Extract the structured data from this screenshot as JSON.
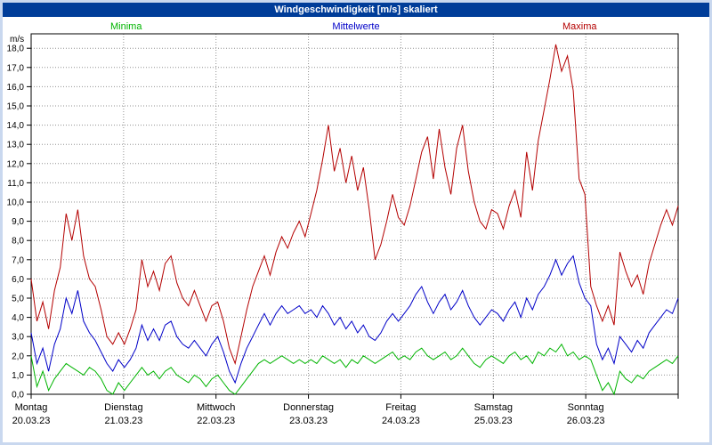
{
  "window": {
    "title": "Windgeschwindigkeit [m/s] skaliert"
  },
  "legend": {
    "minima": "Minima",
    "mittelwerte": "Mittelwerte",
    "maxima": "Maxima"
  },
  "colors": {
    "minima": "#00b400",
    "mittelwerte": "#0000c8",
    "maxima": "#b40000",
    "titlebar_bg": "#003d99",
    "frame_bg": "#c9d8ef",
    "grid": "#909090",
    "axis": "#000000"
  },
  "chart_data": {
    "type": "line",
    "title": "Windgeschwindigkeit [m/s] skaliert",
    "xlabel": "",
    "ylabel": "m/s",
    "ylim": [
      0,
      18.75
    ],
    "ytick_step": 1.0,
    "yticks": [
      "0,0",
      "1,0",
      "2,0",
      "3,0",
      "4,0",
      "5,0",
      "6,0",
      "7,0",
      "8,0",
      "9,0",
      "10,0",
      "11,0",
      "12,0",
      "13,0",
      "14,0",
      "15,0",
      "16,0",
      "17,0",
      "18,0"
    ],
    "grid": true,
    "legend_position": "top",
    "points_per_day": 16,
    "x_days": [
      {
        "weekday": "Montag",
        "date": "20.03.23"
      },
      {
        "weekday": "Dienstag",
        "date": "21.03.23"
      },
      {
        "weekday": "Mittwoch",
        "date": "22.03.23"
      },
      {
        "weekday": "Donnerstag",
        "date": "23.03.23"
      },
      {
        "weekday": "Freitag",
        "date": "24.03.23"
      },
      {
        "weekday": "Samstag",
        "date": "25.03.23"
      },
      {
        "weekday": "Sonntag",
        "date": "26.03.23"
      }
    ],
    "series": [
      {
        "name": "Minima",
        "color": "#00b400",
        "values": [
          2.0,
          0.4,
          1.2,
          0.2,
          0.8,
          1.2,
          1.6,
          1.4,
          1.2,
          1.0,
          1.4,
          1.2,
          0.8,
          0.2,
          0.0,
          0.6,
          0.2,
          0.6,
          1.0,
          1.4,
          1.0,
          1.2,
          0.8,
          1.2,
          1.4,
          1.0,
          0.8,
          0.6,
          1.0,
          0.8,
          0.4,
          0.8,
          1.0,
          0.6,
          0.2,
          0.0,
          0.4,
          0.8,
          1.2,
          1.6,
          1.8,
          1.6,
          1.8,
          2.0,
          1.8,
          1.6,
          1.8,
          1.6,
          1.8,
          1.6,
          2.0,
          1.8,
          1.6,
          1.8,
          1.4,
          1.8,
          1.6,
          2.0,
          1.8,
          1.6,
          1.8,
          2.0,
          2.2,
          1.8,
          2.0,
          1.8,
          2.2,
          2.4,
          2.0,
          1.8,
          2.0,
          2.2,
          1.8,
          2.0,
          2.4,
          2.0,
          1.6,
          1.4,
          1.8,
          2.0,
          1.8,
          1.6,
          2.0,
          2.2,
          1.8,
          2.0,
          1.6,
          2.2,
          2.0,
          2.4,
          2.2,
          2.6,
          2.0,
          2.2,
          1.8,
          2.0,
          1.8,
          1.0,
          0.2,
          0.6,
          0.0,
          1.2,
          0.8,
          0.6,
          1.0,
          0.8,
          1.2,
          1.4,
          1.6,
          1.8,
          1.6,
          2.0
        ]
      },
      {
        "name": "Mittelwerte",
        "color": "#0000c8",
        "values": [
          3.2,
          1.6,
          2.4,
          1.2,
          2.6,
          3.4,
          5.0,
          4.2,
          5.4,
          3.8,
          3.2,
          2.8,
          2.2,
          1.6,
          1.2,
          1.8,
          1.4,
          1.8,
          2.4,
          3.6,
          2.8,
          3.4,
          2.8,
          3.6,
          3.8,
          3.0,
          2.6,
          2.4,
          2.8,
          2.4,
          2.0,
          2.6,
          3.0,
          2.2,
          1.2,
          0.6,
          1.6,
          2.4,
          3.0,
          3.6,
          4.2,
          3.6,
          4.2,
          4.6,
          4.2,
          4.4,
          4.6,
          4.2,
          4.4,
          4.0,
          4.6,
          4.2,
          3.6,
          4.0,
          3.4,
          3.8,
          3.2,
          3.6,
          3.0,
          2.8,
          3.2,
          3.8,
          4.2,
          3.8,
          4.2,
          4.6,
          5.2,
          5.6,
          4.8,
          4.2,
          4.8,
          5.2,
          4.4,
          4.8,
          5.4,
          4.6,
          4.0,
          3.6,
          4.0,
          4.4,
          4.2,
          3.8,
          4.4,
          4.8,
          4.0,
          5.0,
          4.4,
          5.2,
          5.6,
          6.2,
          7.0,
          6.2,
          6.8,
          7.2,
          5.8,
          5.0,
          4.6,
          2.6,
          1.8,
          2.4,
          1.6,
          3.0,
          2.6,
          2.2,
          2.8,
          2.4,
          3.2,
          3.6,
          4.0,
          4.4,
          4.2,
          5.0
        ]
      },
      {
        "name": "Maxima",
        "color": "#b40000",
        "values": [
          6.0,
          3.8,
          4.8,
          3.4,
          5.4,
          6.6,
          9.4,
          8.0,
          9.6,
          7.2,
          6.0,
          5.6,
          4.4,
          3.0,
          2.6,
          3.2,
          2.6,
          3.4,
          4.4,
          7.0,
          5.6,
          6.4,
          5.4,
          6.8,
          7.2,
          5.8,
          5.0,
          4.6,
          5.4,
          4.6,
          3.8,
          4.6,
          4.8,
          3.8,
          2.4,
          1.6,
          3.0,
          4.4,
          5.6,
          6.4,
          7.2,
          6.2,
          7.4,
          8.2,
          7.6,
          8.4,
          9.0,
          8.2,
          9.4,
          10.6,
          12.2,
          14.0,
          11.6,
          12.8,
          11.0,
          12.4,
          10.6,
          11.8,
          9.6,
          7.0,
          7.8,
          9.0,
          10.4,
          9.2,
          8.8,
          9.8,
          11.2,
          12.6,
          13.4,
          11.2,
          13.8,
          11.8,
          10.4,
          12.8,
          14.0,
          11.6,
          10.0,
          9.0,
          8.6,
          9.6,
          9.4,
          8.6,
          9.8,
          10.6,
          9.2,
          12.6,
          10.6,
          13.2,
          14.8,
          16.4,
          18.2,
          16.8,
          17.6,
          15.8,
          11.2,
          10.4,
          5.6,
          4.6,
          3.8,
          4.6,
          3.6,
          7.4,
          6.4,
          5.6,
          6.2,
          5.2,
          6.8,
          7.8,
          8.8,
          9.6,
          8.8,
          9.8
        ]
      }
    ]
  }
}
